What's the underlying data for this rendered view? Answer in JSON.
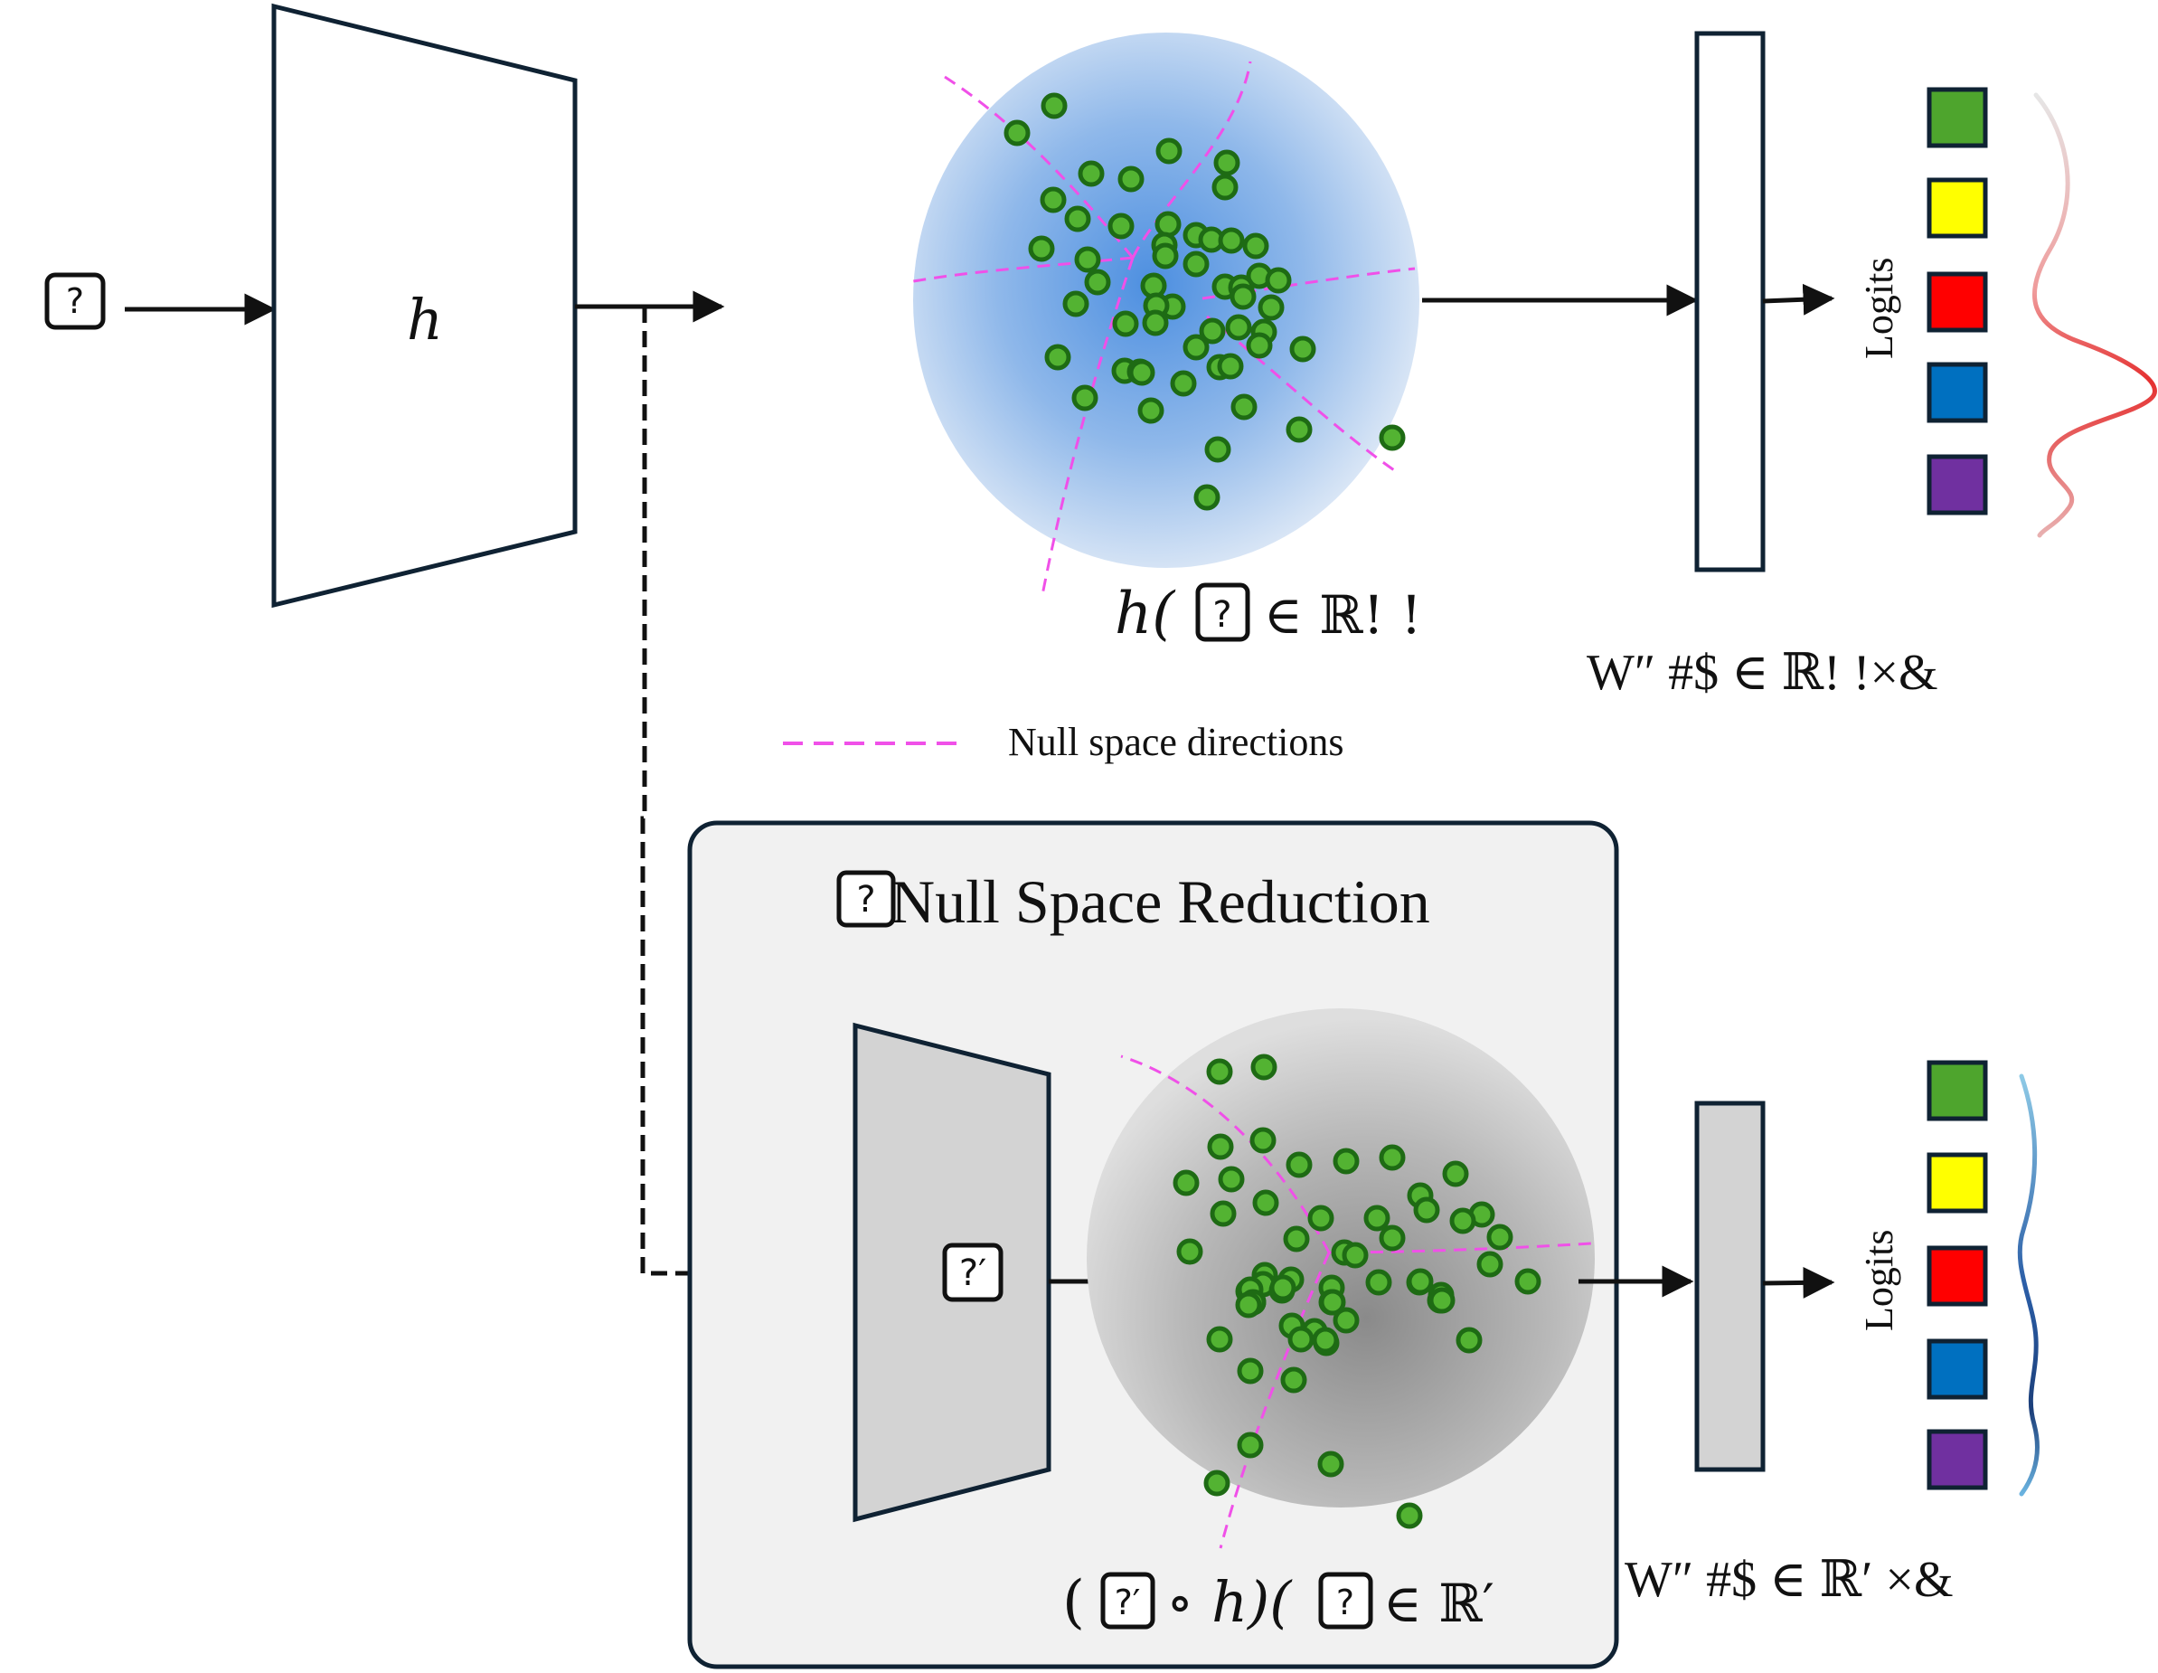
{
  "diagram": {
    "input_glyph": "?",
    "encoder_label": "h",
    "top_feature_label": "h(",
    "top_feature_tail": "∈ ℝ! !",
    "top_classifier_label": "W″ #$ ∈ ℝ! !×&",
    "logits_label": "Logits",
    "legend_null_space": "Null space directions",
    "panel_title": "Null Space Reduction",
    "panel_title_glyph": "?",
    "reduction_glyph": "?′",
    "bottom_feature_label": "(",
    "bottom_feature_mid": "∘ h)(",
    "bottom_feature_tail": "∈ ℝ′",
    "bottom_classifier_label": "W″ #$ ∈ ℝ′ ×&"
  },
  "colors": {
    "outline": "#0f2233",
    "point_fill": "#53b332",
    "point_stroke": "#1e6b14",
    "null_space_dash": "#f050e8",
    "top_sphere_center": "#4d8fe0",
    "top_sphere_edge": "#dbe7f6",
    "bottom_sphere_center": "#8a8a8a",
    "bottom_sphere_edge": "#dedede",
    "panel_bg": "#f1f1f1",
    "reducer_fill": "#d3d3d3",
    "logit_squares": [
      "#4ea52d",
      "#ffff00",
      "#ff0000",
      "#0070c0",
      "#7030a0"
    ]
  }
}
